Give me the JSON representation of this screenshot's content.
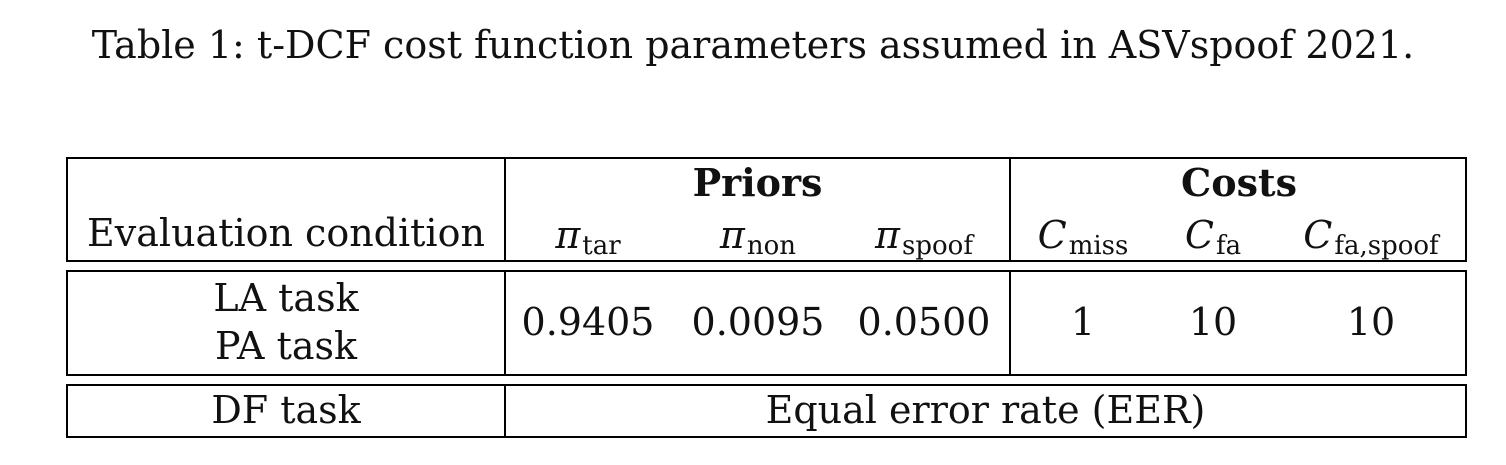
{
  "caption": "Table 1: t-DCF cost function parameters assumed in ASVspoof 2021.",
  "header": {
    "condition_label": "Evaluation condition",
    "priors_label": "Priors",
    "costs_label": "Costs",
    "pi_symbol": "π",
    "c_symbol": "C",
    "pi_tar_sub": "tar",
    "pi_non_sub": "non",
    "pi_spoof_sub": "spoof",
    "c_miss_sub": "miss",
    "c_fa_sub": "fa",
    "c_fa_spoof_sub": "fa,spoof"
  },
  "row1": {
    "task_la": "LA task",
    "task_pa": "PA task",
    "pi_tar": "0.9405",
    "pi_non": "0.0095",
    "pi_spoof": "0.0500",
    "c_miss": "1",
    "c_fa": "10",
    "c_fa_spoof": "10"
  },
  "row2": {
    "task_df": "DF task",
    "metric": "Equal error rate (EER)"
  }
}
